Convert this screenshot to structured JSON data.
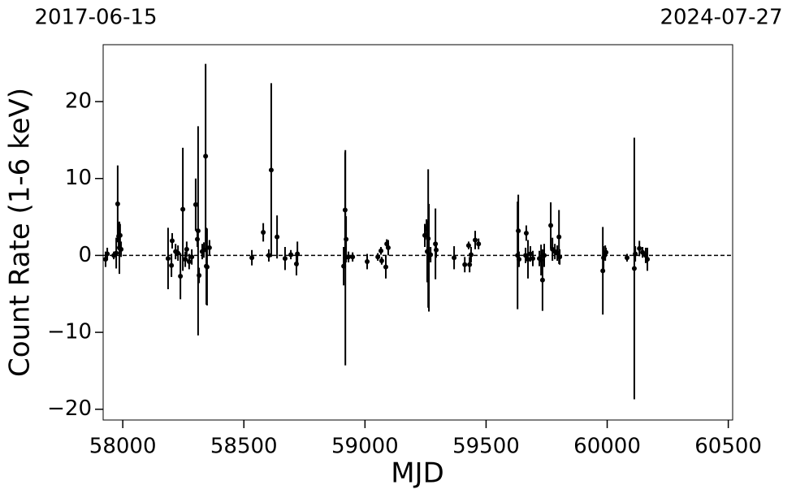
{
  "chart_data": {
    "type": "errorbar_scatter",
    "xlabel": "MJD",
    "ylabel": "Count Rate (1-6 keV)",
    "top_labels": [
      "2017-06-15",
      "2024-07-27"
    ],
    "xlim": [
      57919,
      60518
    ],
    "ylim": [
      -21.4,
      27.4
    ],
    "xticks": [
      58000,
      58500,
      59000,
      59500,
      60000,
      60500
    ],
    "yticks": [
      {
        "value": -20,
        "label": "−20"
      },
      {
        "value": -10,
        "label": "−10"
      },
      0,
      10,
      20
    ],
    "hline": 0,
    "color": "#000000",
    "x": [
      57929,
      57936,
      57963,
      57973,
      57979,
      57983,
      57986,
      57989,
      57993,
      58187,
      58201,
      58204,
      58218,
      58228,
      58238,
      58248,
      58258,
      58264,
      58274,
      58285,
      58301,
      58308,
      58311,
      58315,
      58328,
      58335,
      58342,
      58345,
      58348,
      58358,
      58533,
      58580,
      58603,
      58613,
      58637,
      58670,
      58694,
      58717,
      58721,
      58912,
      58918,
      58922,
      58919,
      58932,
      58949,
      59009,
      59053,
      59066,
      59069,
      59086,
      59090,
      59096,
      59247,
      59254,
      59257,
      59261,
      59264,
      59271,
      59291,
      59294,
      59368,
      59412,
      59428,
      59432,
      59438,
      59455,
      59469,
      59630,
      59633,
      59636,
      59663,
      59666,
      59673,
      59683,
      59693,
      59720,
      59727,
      59733,
      59740,
      59767,
      59774,
      59784,
      59794,
      59801,
      59804,
      59982,
      59985,
      59992,
      59995,
      60082,
      60112,
      60116,
      60133,
      60146,
      60159,
      60166
    ],
    "y": [
      -0.5,
      0.2,
      0,
      0.3,
      6.7,
      2.5,
      1.0,
      2.6,
      0.8,
      -0.4,
      -1.3,
      1.9,
      0.5,
      0.3,
      -2.7,
      6.0,
      -0.5,
      0.8,
      -0.8,
      -0.2,
      6.6,
      2.1,
      3.2,
      -2.6,
      0.5,
      0.7,
      12.9,
      -1.4,
      -1.5,
      1.0,
      -0.3,
      3.0,
      0.0,
      11.1,
      2.4,
      -0.4,
      0.1,
      -1.1,
      0.2,
      -1.4,
      5.9,
      2.1,
      -0.3,
      -0.2,
      -0.2,
      -0.8,
      -0.2,
      0.6,
      -0.7,
      -1.5,
      1.5,
      1.0,
      2.6,
      3.5,
      0.5,
      2.2,
      -0.3,
      0.1,
      1.5,
      0.7,
      -0.3,
      -1.2,
      1.3,
      -1.2,
      0.1,
      2.0,
      1.5,
      0.0,
      3.2,
      -0.5,
      0.0,
      2.9,
      -0.5,
      0.2,
      -0.4,
      -0.4,
      -0.6,
      -3.2,
      0.0,
      3.9,
      0.8,
      0.5,
      0.3,
      2.4,
      -0.2,
      -2.0,
      -0.3,
      0.3,
      0.4,
      -0.3,
      -1.7,
      0.2,
      0.9,
      0.4,
      0.0,
      -0.5
    ],
    "yerr": [
      1,
      0.8,
      0.5,
      2,
      5,
      1.8,
      3.4,
      1.5,
      1,
      4,
      1.5,
      1,
      1,
      1,
      3,
      8,
      1,
      1,
      1,
      1,
      3.4,
      1,
      13.6,
      1,
      1,
      1,
      12,
      5,
      5,
      1,
      1,
      1.2,
      0.8,
      11.3,
      2.8,
      1.5,
      0.6,
      1.5,
      1.6,
      2.5,
      7.5,
      3,
      14,
      0.7,
      0.6,
      1,
      0.5,
      0.5,
      0.5,
      1.5,
      0.6,
      1,
      1.5,
      1.2,
      4,
      9,
      7,
      1,
      4.6,
      1,
      1.5,
      1,
      0.5,
      1,
      1,
      1.2,
      0.7,
      7,
      4.7,
      1,
      1,
      1,
      2.5,
      1,
      1,
      1,
      2,
      4,
      1.5,
      3,
      1.5,
      1,
      1,
      3.5,
      1,
      5.7,
      1.5,
      1,
      0.6,
      0.5,
      17,
      1,
      1,
      0.7,
      1,
      1.5
    ]
  }
}
